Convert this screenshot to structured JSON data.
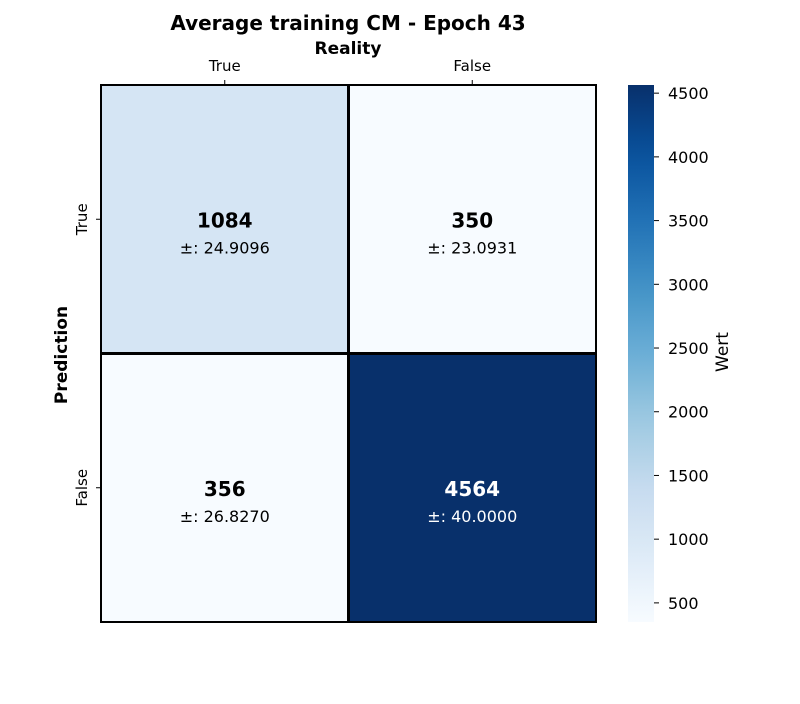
{
  "chart_data": {
    "type": "heatmap",
    "title": "Average training CM - Epoch 43",
    "xlabel": "Reality",
    "ylabel": "Prediction",
    "x_categories": [
      "True",
      "False"
    ],
    "y_categories": [
      "True",
      "False"
    ],
    "values": [
      [
        1084,
        350
      ],
      [
        356,
        4564
      ]
    ],
    "std_labels": [
      [
        "±: 24.9096",
        "±: 23.0931"
      ],
      [
        "±: 26.8270",
        "±: 40.0000"
      ]
    ],
    "value_labels": [
      [
        "1084",
        "350"
      ],
      [
        "356",
        "4564"
      ]
    ],
    "colorbar": {
      "label": "Wert",
      "range": [
        350,
        4564
      ],
      "ticks": [
        500,
        1000,
        1500,
        2000,
        2500,
        3000,
        3500,
        4000,
        4500
      ],
      "tick_labels": [
        "500",
        "1000",
        "1500",
        "2000",
        "2500",
        "3000",
        "3500",
        "4000",
        "4500"
      ]
    },
    "colormap": "Blues",
    "legend": "colorbar-right",
    "grid": false
  }
}
